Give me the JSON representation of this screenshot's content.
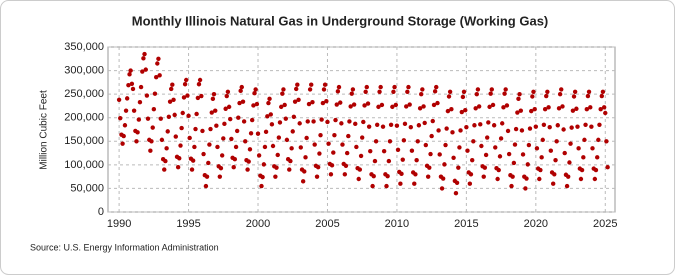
{
  "chart_data": {
    "type": "scatter",
    "title": "Monthly Illinois Natural Gas in Underground Storage (Working Gas)",
    "ylabel": "Million Cubic Feet",
    "source": "Source: U.S. Energy Information Administration",
    "xlim": [
      1989.2,
      2025.7
    ],
    "xticks": [
      1990,
      1995,
      2000,
      2005,
      2010,
      2015,
      2020,
      2025
    ],
    "ylim": [
      0,
      350000
    ],
    "yticks": [
      0,
      {
        "value": 50000,
        "label": "50,000"
      },
      {
        "value": 100000,
        "label": "100,000"
      },
      {
        "value": 150000,
        "label": "150,000"
      },
      {
        "value": 200000,
        "label": "200,000"
      },
      {
        "value": 250000,
        "label": "250,000"
      },
      {
        "value": 300000,
        "label": "300,000"
      },
      {
        "value": 350000,
        "label": "350,000"
      }
    ],
    "grid": true,
    "x": [
      1990,
      1990.08,
      1990.17,
      1990.25,
      1990.33,
      1990.42,
      1990.5,
      1990.58,
      1990.67,
      1990.75,
      1990.83,
      1990.92,
      1991,
      1991.08,
      1991.17,
      1991.25,
      1991.33,
      1991.42,
      1991.5,
      1991.58,
      1991.67,
      1991.75,
      1991.83,
      1991.92,
      1992,
      1992.08,
      1992.17,
      1992.25,
      1992.33,
      1992.42,
      1992.5,
      1992.58,
      1992.67,
      1992.75,
      1992.83,
      1992.92,
      1993,
      1993.08,
      1993.17,
      1993.25,
      1993.33,
      1993.42,
      1993.5,
      1993.58,
      1993.67,
      1993.75,
      1993.83,
      1993.92,
      1994,
      1994.08,
      1994.17,
      1994.25,
      1994.33,
      1994.42,
      1994.5,
      1994.58,
      1994.67,
      1994.75,
      1994.83,
      1994.92,
      1995,
      1995.08,
      1995.17,
      1995.25,
      1995.33,
      1995.42,
      1995.5,
      1995.58,
      1995.67,
      1995.75,
      1995.83,
      1995.92,
      1996,
      1996.08,
      1996.17,
      1996.25,
      1996.33,
      1996.42,
      1996.5,
      1996.58,
      1996.67,
      1996.75,
      1996.83,
      1996.92,
      1997,
      1997.08,
      1997.17,
      1997.25,
      1997.33,
      1997.42,
      1997.5,
      1997.58,
      1997.67,
      1997.75,
      1997.83,
      1997.92,
      1998,
      1998.08,
      1998.17,
      1998.25,
      1998.33,
      1998.42,
      1998.5,
      1998.58,
      1998.67,
      1998.75,
      1998.83,
      1998.92,
      1999,
      1999.08,
      1999.17,
      1999.25,
      1999.33,
      1999.42,
      1999.5,
      1999.58,
      1999.67,
      1999.75,
      1999.83,
      1999.92,
      2000,
      2000.08,
      2000.17,
      2000.25,
      2000.33,
      2000.42,
      2000.5,
      2000.58,
      2000.67,
      2000.75,
      2000.83,
      2000.92,
      2001,
      2001.08,
      2001.17,
      2001.25,
      2001.33,
      2001.42,
      2001.5,
      2001.58,
      2001.67,
      2001.75,
      2001.83,
      2001.92,
      2002,
      2002.08,
      2002.17,
      2002.25,
      2002.33,
      2002.42,
      2002.5,
      2002.58,
      2002.67,
      2002.75,
      2002.83,
      2002.92,
      2003,
      2003.08,
      2003.17,
      2003.25,
      2003.33,
      2003.42,
      2003.5,
      2003.58,
      2003.67,
      2003.75,
      2003.83,
      2003.92,
      2004,
      2004.08,
      2004.17,
      2004.25,
      2004.33,
      2004.42,
      2004.5,
      2004.58,
      2004.67,
      2004.75,
      2004.83,
      2004.92,
      2005,
      2005.08,
      2005.17,
      2005.25,
      2005.33,
      2005.42,
      2005.5,
      2005.58,
      2005.67,
      2005.75,
      2005.83,
      2005.92,
      2006,
      2006.08,
      2006.17,
      2006.25,
      2006.33,
      2006.42,
      2006.5,
      2006.58,
      2006.67,
      2006.75,
      2006.83,
      2006.92,
      2007,
      2007.08,
      2007.17,
      2007.25,
      2007.33,
      2007.42,
      2007.5,
      2007.58,
      2007.67,
      2007.75,
      2007.83,
      2007.92,
      2008,
      2008.08,
      2008.17,
      2008.25,
      2008.33,
      2008.42,
      2008.5,
      2008.58,
      2008.67,
      2008.75,
      2008.83,
      2008.92,
      2009,
      2009.08,
      2009.17,
      2009.25,
      2009.33,
      2009.42,
      2009.5,
      2009.58,
      2009.67,
      2009.75,
      2009.83,
      2009.92,
      2010,
      2010.08,
      2010.17,
      2010.25,
      2010.33,
      2010.42,
      2010.5,
      2010.58,
      2010.67,
      2010.75,
      2010.83,
      2010.92,
      2011,
      2011.08,
      2011.17,
      2011.25,
      2011.33,
      2011.42,
      2011.5,
      2011.58,
      2011.67,
      2011.75,
      2011.83,
      2011.92,
      2012,
      2012.08,
      2012.17,
      2012.25,
      2012.33,
      2012.42,
      2012.5,
      2012.58,
      2012.67,
      2012.75,
      2012.83,
      2012.92,
      2013,
      2013.08,
      2013.17,
      2013.25,
      2013.33,
      2013.42,
      2013.5,
      2013.58,
      2013.67,
      2013.75,
      2013.83,
      2013.92,
      2014,
      2014.08,
      2014.17,
      2014.25,
      2014.33,
      2014.42,
      2014.5,
      2014.58,
      2014.67,
      2014.75,
      2014.83,
      2014.92,
      2015,
      2015.08,
      2015.17,
      2015.25,
      2015.33,
      2015.42,
      2015.5,
      2015.58,
      2015.67,
      2015.75,
      2015.83,
      2015.92,
      2016,
      2016.08,
      2016.17,
      2016.25,
      2016.33,
      2016.42,
      2016.5,
      2016.58,
      2016.67,
      2016.75,
      2016.83,
      2016.92,
      2017,
      2017.08,
      2017.17,
      2017.25,
      2017.33,
      2017.42,
      2017.5,
      2017.58,
      2017.67,
      2017.75,
      2017.83,
      2017.92,
      2018,
      2018.08,
      2018.17,
      2018.25,
      2018.33,
      2018.42,
      2018.5,
      2018.58,
      2018.67,
      2018.75,
      2018.83,
      2018.92,
      2019,
      2019.08,
      2019.17,
      2019.25,
      2019.33,
      2019.42,
      2019.5,
      2019.58,
      2019.67,
      2019.75,
      2019.83,
      2019.92,
      2020,
      2020.08,
      2020.17,
      2020.25,
      2020.33,
      2020.42,
      2020.5,
      2020.58,
      2020.67,
      2020.75,
      2020.83,
      2020.92,
      2021,
      2021.08,
      2021.17,
      2021.25,
      2021.33,
      2021.42,
      2021.5,
      2021.58,
      2021.67,
      2021.75,
      2021.83,
      2021.92,
      2022,
      2022.08,
      2022.17,
      2022.25,
      2022.33,
      2022.42,
      2022.5,
      2022.58,
      2022.67,
      2022.75,
      2022.83,
      2022.92,
      2023,
      2023.08,
      2023.17,
      2023.25,
      2023.33,
      2023.42,
      2023.5,
      2023.58,
      2023.67,
      2023.75,
      2023.83,
      2023.92,
      2024,
      2024.08,
      2024.17,
      2024.25,
      2024.33,
      2024.42,
      2024.5,
      2024.58,
      2024.67,
      2024.75,
      2024.83,
      2024.92,
      2025,
      2025.08,
      2025.17
    ],
    "color": "#b00000",
    "values": [
      238000,
      199000,
      164000,
      145000,
      161000,
      184000,
      215000,
      241000,
      269000,
      292000,
      300000,
      272000,
      261000,
      215000,
      172000,
      150000,
      169000,
      196000,
      233000,
      265000,
      298000,
      326000,
      335000,
      302000,
      247000,
      198000,
      153000,
      130000,
      150000,
      179000,
      218000,
      251000,
      286000,
      315000,
      325000,
      290000,
      198000,
      153000,
      112000,
      90000,
      108000,
      135000,
      171000,
      202000,
      234000,
      261000,
      270000,
      238000,
      206000,
      160000,
      117000,
      95000,
      114000,
      141000,
      178000,
      210000,
      243000,
      271000,
      280000,
      247000,
      204000,
      157000,
      113000,
      90000,
      109000,
      138000,
      176000,
      208000,
      242000,
      271000,
      280000,
      246000,
      172000,
      123000,
      78000,
      55000,
      75000,
      104000,
      143000,
      176000,
      211000,
      240000,
      250000,
      215000,
      183000,
      138000,
      97000,
      75000,
      93000,
      120000,
      156000,
      187000,
      219000,
      246000,
      255000,
      223000,
      197000,
      155000,
      115000,
      95000,
      112000,
      138000,
      172000,
      200000,
      231000,
      257000,
      265000,
      234000,
      192000,
      150000,
      110000,
      90000,
      107000,
      133000,
      167000,
      195000,
      226000,
      252000,
      260000,
      229000,
      166000,
      120000,
      77000,
      55000,
      74000,
      101000,
      138000,
      170000,
      203000,
      231000,
      240000,
      207000,
      186000,
      140000,
      97000,
      75000,
      94000,
      121000,
      158000,
      190000,
      223000,
      251000,
      260000,
      227000,
      198000,
      153000,
      112000,
      90000,
      108000,
      135000,
      171000,
      202000,
      234000,
      261000,
      270000,
      238000,
      188000,
      137000,
      90000,
      65000,
      86000,
      116000,
      157000,
      192000,
      229000,
      260000,
      270000,
      233000,
      192000,
      143000,
      98000,
      75000,
      95000,
      124000,
      163000,
      196000,
      231000,
      260000,
      270000,
      235000,
      191000,
      145000,
      102000,
      80000,
      99000,
      126000,
      163000,
      195000,
      228000,
      256000,
      265000,
      232000,
      188000,
      143000,
      102000,
      80000,
      98000,
      125000,
      161000,
      192000,
      224000,
      251000,
      260000,
      228000,
      187000,
      138000,
      93000,
      70000,
      90000,
      119000,
      158000,
      191000,
      226000,
      255000,
      265000,
      230000,
      181000,
      129000,
      80000,
      55000,
      76000,
      108000,
      150000,
      185000,
      223000,
      255000,
      265000,
      227000,
      181000,
      129000,
      80000,
      55000,
      76000,
      108000,
      150000,
      185000,
      223000,
      255000,
      265000,
      227000,
      183000,
      132000,
      85000,
      60000,
      81000,
      111000,
      152000,
      187000,
      224000,
      255000,
      265000,
      228000,
      180000,
      130000,
      84000,
      60000,
      80000,
      110000,
      150000,
      184000,
      220000,
      250000,
      260000,
      224000,
      189000,
      142000,
      98000,
      75000,
      94000,
      123000,
      161000,
      193000,
      227000,
      256000,
      265000,
      231000,
      173000,
      122000,
      75000,
      50000,
      71000,
      101000,
      142000,
      177000,
      214000,
      245000,
      255000,
      218000,
      169000,
      115000,
      66000,
      40000,
      62000,
      94000,
      137000,
      173000,
      212000,
      244000,
      255000,
      216000,
      180000,
      130000,
      84000,
      60000,
      80000,
      110000,
      150000,
      184000,
      220000,
      250000,
      260000,
      224000,
      186000,
      140000,
      97000,
      75000,
      94000,
      121000,
      158000,
      190000,
      223000,
      251000,
      260000,
      227000,
      184000,
      137000,
      93000,
      70000,
      89000,
      118000,
      156000,
      188000,
      222000,
      251000,
      260000,
      226000,
      172000,
      123000,
      78000,
      55000,
      75000,
      104000,
      143000,
      176000,
      211000,
      240000,
      250000,
      215000,
      173000,
      122000,
      75000,
      50000,
      71000,
      101000,
      142000,
      177000,
      214000,
      245000,
      255000,
      218000,
      181000,
      135000,
      92000,
      70000,
      89000,
      116000,
      153000,
      185000,
      218000,
      246000,
      255000,
      222000,
      180000,
      130000,
      84000,
      60000,
      80000,
      110000,
      150000,
      184000,
      220000,
      250000,
      260000,
      224000,
      175000,
      125000,
      79000,
      55000,
      75000,
      105000,
      145000,
      179000,
      215000,
      245000,
      255000,
      219000,
      181000,
      135000,
      92000,
      70000,
      89000,
      116000,
      153000,
      185000,
      218000,
      246000,
      255000,
      222000,
      181000,
      135000,
      92000,
      70000,
      89000,
      116000,
      153000,
      185000,
      218000,
      246000,
      255000,
      222000,
      210000,
      150000,
      95000
    ]
  }
}
